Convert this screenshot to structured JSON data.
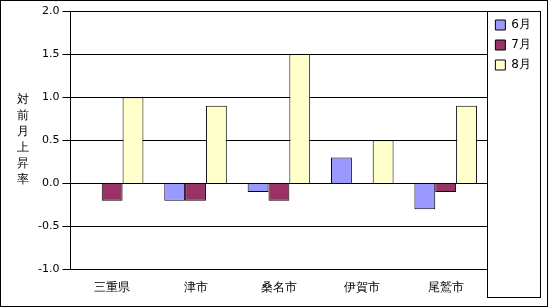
{
  "chart_data": {
    "type": "bar",
    "y_label": "対前月上昇率",
    "categories": [
      "三重県",
      "津市",
      "桑名市",
      "伊賀市",
      "尾鷲市"
    ],
    "series": [
      {
        "name": "6月",
        "color": "#9999ff",
        "values": [
          0.0,
          -0.2,
          -0.1,
          0.3,
          -0.3
        ]
      },
      {
        "name": "7月",
        "color": "#993366",
        "values": [
          -0.2,
          -0.2,
          -0.2,
          0.0,
          -0.1
        ]
      },
      {
        "name": "8月",
        "color": "#ffffcc",
        "values": [
          1.0,
          0.9,
          1.5,
          0.5,
          0.9
        ]
      }
    ],
    "ylim": [
      -1.0,
      2.0
    ],
    "yticks": [
      {
        "value": -1.0,
        "label": "-1.0"
      },
      -0.5,
      {
        "value": 0.0,
        "label": "0.0"
      },
      0.5,
      {
        "value": 1.0,
        "label": "1.0"
      },
      1.5,
      {
        "value": 2.0,
        "label": "2.0"
      }
    ],
    "grid": true,
    "legend": "right"
  }
}
